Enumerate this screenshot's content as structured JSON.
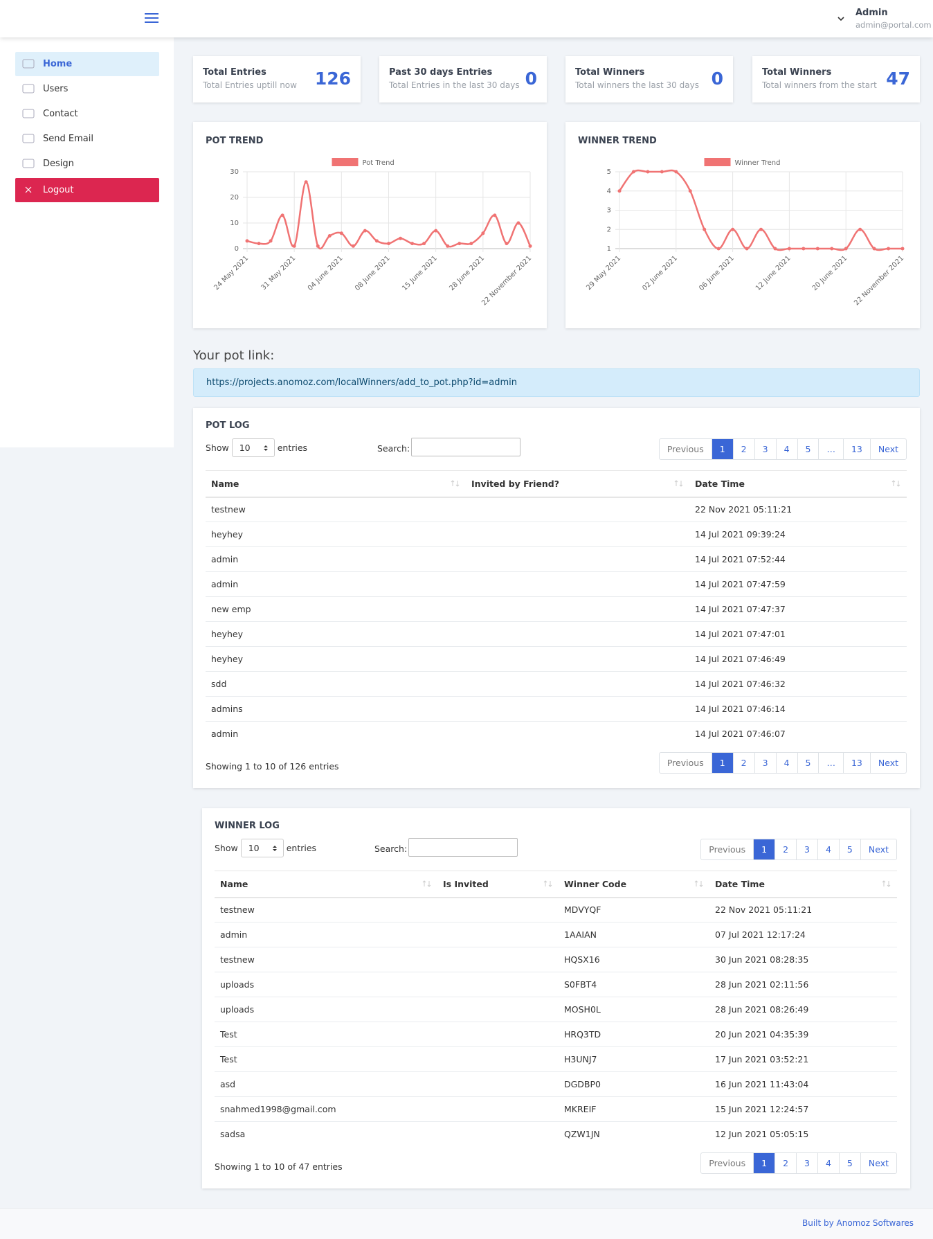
{
  "header": {
    "user_name": "Admin",
    "user_email": "admin@portal.com"
  },
  "sidebar": {
    "items": [
      "Home",
      "Users",
      "Contact",
      "Send Email",
      "Design",
      "Logout"
    ]
  },
  "stats": [
    {
      "title": "Total Entries",
      "subtitle": "Total Entries uptill now",
      "value": 126
    },
    {
      "title": "Past 30 days Entries",
      "subtitle": "Total Entries in the last 30 days",
      "value": 0
    },
    {
      "title": "Total Winners",
      "subtitle": "Total winners the last 30 days",
      "value": 0
    },
    {
      "title": "Total Winners",
      "subtitle": "Total winners from the start",
      "value": 47
    }
  ],
  "chart_data": [
    {
      "type": "line",
      "title": "POT TREND",
      "categories": [
        "24 May 2021",
        null,
        null,
        null,
        "31 May 2021",
        null,
        null,
        null,
        "04 June 2021",
        null,
        null,
        null,
        "08 June 2021",
        null,
        null,
        null,
        "15 June 2021",
        null,
        null,
        null,
        "28 June 2021",
        null,
        null,
        null,
        "22 November 2021"
      ],
      "series": [
        {
          "name": "Pot Trend",
          "color": "#f07373",
          "values": [
            3,
            2,
            3,
            13,
            1,
            26,
            1,
            5,
            6,
            1,
            7,
            3,
            2,
            4,
            2,
            2,
            7,
            1,
            2,
            2,
            6,
            13,
            2,
            10,
            1
          ]
        }
      ],
      "ylim": [
        0,
        30
      ],
      "yticks": [
        0,
        10,
        20,
        30
      ],
      "grid": true
    },
    {
      "type": "line",
      "title": "WINNER TREND",
      "categories": [
        "29 May 2021",
        null,
        null,
        null,
        "02 June 2021",
        null,
        null,
        null,
        "06 June 2021",
        null,
        null,
        null,
        "12 June 2021",
        null,
        null,
        null,
        "20 June 2021",
        null,
        null,
        null,
        "22 November 2021"
      ],
      "series": [
        {
          "name": "Winner Trend",
          "color": "#f07373",
          "values": [
            4,
            5,
            5,
            5,
            5,
            4,
            2,
            1,
            2,
            1,
            2,
            1,
            1,
            1,
            1,
            1,
            1,
            2,
            1,
            1,
            1
          ]
        }
      ],
      "ylim": [
        1,
        5
      ],
      "yticks": [
        1,
        2,
        3,
        4,
        5
      ],
      "grid": true
    }
  ],
  "pot_link": {
    "label": "Your pot link:",
    "url": "https://projects.anomoz.com/localWinners/add_to_pot.php?id=admin"
  },
  "pot_log": {
    "title": "POT LOG",
    "show": "Show",
    "length": "10",
    "entries": "entries",
    "search": "Search:",
    "columns": [
      "Name",
      "Invited by Friend?",
      "Date Time"
    ],
    "rows": [
      {
        "name": "testnew",
        "date_time": "22 Nov 2021 05:11:21"
      },
      {
        "name": "heyhey",
        "date_time": "14 Jul 2021 09:39:24"
      },
      {
        "name": "admin",
        "date_time": "14 Jul 2021 07:52:44"
      },
      {
        "name": "admin",
        "date_time": "14 Jul 2021 07:47:59"
      },
      {
        "name": "new emp",
        "date_time": "14 Jul 2021 07:47:37"
      },
      {
        "name": "heyhey",
        "date_time": "14 Jul 2021 07:47:01"
      },
      {
        "name": "heyhey",
        "date_time": "14 Jul 2021 07:46:49"
      },
      {
        "name": "sdd",
        "date_time": "14 Jul 2021 07:46:32"
      },
      {
        "name": "admins",
        "date_time": "14 Jul 2021 07:46:14"
      },
      {
        "name": "admin",
        "date_time": "14 Jul 2021 07:46:07"
      }
    ],
    "info": "Showing 1 to 10 of 126 entries",
    "pagination": [
      "Previous",
      "1",
      "2",
      "3",
      "4",
      "5",
      "…",
      "13",
      "Next"
    ]
  },
  "winner_log": {
    "title": "WINNER LOG",
    "show": "Show",
    "length": "10",
    "entries": "entries",
    "search": "Search:",
    "columns": [
      "Name",
      "Is Invited",
      "Winner Code",
      "Date Time"
    ],
    "rows": [
      {
        "name": "testnew",
        "code": "MDVYQF",
        "date_time": "22 Nov 2021 05:11:21"
      },
      {
        "name": "admin",
        "code": "1AAIAN",
        "date_time": "07 Jul 2021 12:17:24"
      },
      {
        "name": "testnew",
        "code": "HQSX16",
        "date_time": "30 Jun 2021 08:28:35"
      },
      {
        "name": "uploads",
        "code": "S0FBT4",
        "date_time": "28 Jun 2021 02:11:56"
      },
      {
        "name": "uploads",
        "code": "MOSH0L",
        "date_time": "28 Jun 2021 08:26:49"
      },
      {
        "name": "Test",
        "code": "HRQ3TD",
        "date_time": "20 Jun 2021 04:35:39"
      },
      {
        "name": "Test",
        "code": "H3UNJ7",
        "date_time": "17 Jun 2021 03:52:21"
      },
      {
        "name": "asd",
        "code": "DGDBP0",
        "date_time": "16 Jun 2021 11:43:04"
      },
      {
        "name": "snahmed1998@gmail.com",
        "code": "MKREIF",
        "date_time": "15 Jun 2021 12:24:57"
      },
      {
        "name": "sadsa",
        "code": "QZW1JN",
        "date_time": "12 Jun 2021 05:05:15"
      }
    ],
    "info": "Showing 1 to 10 of 47 entries",
    "pagination": [
      "Previous",
      "1",
      "2",
      "3",
      "4",
      "5",
      "Next"
    ]
  },
  "footer": "Built by Anomoz Softwares"
}
